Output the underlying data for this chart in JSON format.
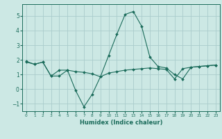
{
  "xlabel": "Humidex (Indice chaleur)",
  "background_color": "#cce8e4",
  "grid_color": "#aacccc",
  "line_color": "#1a6b5a",
  "ylim": [
    -1.5,
    5.8
  ],
  "xlim": [
    -0.5,
    23.5
  ],
  "yticks": [
    -1,
    0,
    1,
    2,
    3,
    4,
    5
  ],
  "xticks": [
    0,
    1,
    2,
    3,
    4,
    5,
    6,
    7,
    8,
    9,
    10,
    11,
    12,
    13,
    14,
    15,
    16,
    17,
    18,
    19,
    20,
    21,
    22,
    23
  ],
  "line1_x": [
    0,
    1,
    2,
    3,
    4,
    5,
    6,
    7,
    8,
    9,
    10,
    11,
    12,
    13,
    14,
    15,
    16,
    17,
    18,
    19,
    20,
    21,
    22,
    23
  ],
  "line1_y": [
    1.9,
    1.7,
    1.85,
    0.9,
    0.9,
    1.3,
    1.2,
    1.15,
    1.05,
    0.85,
    1.1,
    1.2,
    1.3,
    1.35,
    1.4,
    1.45,
    1.4,
    1.35,
    0.7,
    1.4,
    1.5,
    1.55,
    1.6,
    1.65
  ],
  "line2_x": [
    0,
    1,
    2,
    3,
    4,
    5,
    6,
    7,
    8,
    9,
    10,
    11,
    12,
    13,
    14,
    15,
    16,
    17,
    18,
    19,
    20,
    21,
    22,
    23
  ],
  "line2_y": [
    1.85,
    1.7,
    1.85,
    0.9,
    1.3,
    1.3,
    -0.1,
    -1.2,
    -0.35,
    0.85,
    2.3,
    3.75,
    5.1,
    5.3,
    4.3,
    2.2,
    1.55,
    1.45,
    1.0,
    0.7,
    1.5,
    1.55,
    1.6,
    1.65
  ]
}
